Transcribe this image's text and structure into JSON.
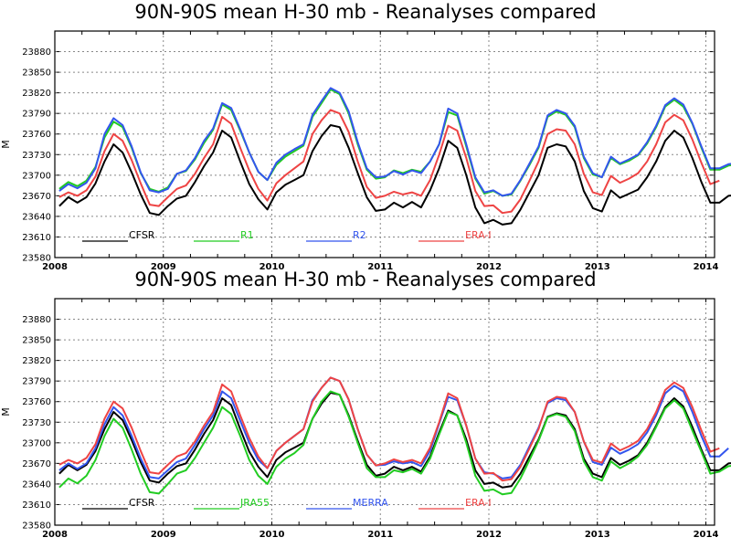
{
  "chart_data": [
    {
      "type": "line",
      "title": "90N-90S mean H-30 mb - Reanalyses compared",
      "ylabel": "M",
      "ylim": [
        23580,
        23910
      ],
      "yticks": [
        23580,
        23610,
        23640,
        23670,
        23700,
        23730,
        23760,
        23790,
        23820,
        23850,
        23880
      ],
      "xlim": [
        2008,
        2014.08
      ],
      "xticks": [
        "2008",
        "2009",
        "2010",
        "2011",
        "2012",
        "2013",
        "2014"
      ],
      "grid": true,
      "legend_position": "bottom",
      "series": [
        {
          "name": "CFSR",
          "color": "#000000",
          "start": 2008.0,
          "values": [
            23655,
            23668,
            23660,
            23668,
            23688,
            23720,
            23745,
            23733,
            23704,
            23672,
            23645,
            23642,
            23655,
            23666,
            23670,
            23690,
            23713,
            23733,
            23765,
            23755,
            23720,
            23687,
            23665,
            23650,
            23675,
            23686,
            23693,
            23700,
            23735,
            23757,
            23773,
            23770,
            23740,
            23703,
            23668,
            23648,
            23650,
            23660,
            23653,
            23661,
            23653,
            23678,
            23710,
            23750,
            23740,
            23700,
            23653,
            23630,
            23635,
            23628,
            23630,
            23650,
            23675,
            23700,
            23740,
            23745,
            23742,
            23720,
            23677,
            23652,
            23647,
            23678,
            23667,
            23673,
            23679,
            23697,
            23720,
            23750,
            23765,
            23755,
            23725,
            23690,
            23660,
            23660,
            23670,
            23671
          ]
        },
        {
          "name": "R1",
          "color": "#22cc22",
          "start": 2008.0,
          "values": [
            23680,
            23690,
            23684,
            23692,
            23712,
            23755,
            23778,
            23770,
            23740,
            23703,
            23680,
            23676,
            23682,
            23702,
            23706,
            23723,
            23747,
            23766,
            23803,
            23795,
            23765,
            23733,
            23705,
            23693,
            23715,
            23727,
            23735,
            23743,
            23785,
            23805,
            23825,
            23818,
            23790,
            23745,
            23708,
            23695,
            23697,
            23707,
            23703,
            23708,
            23705,
            23720,
            23745,
            23792,
            23787,
            23742,
            23695,
            23673,
            23677,
            23670,
            23672,
            23692,
            23715,
            23740,
            23785,
            23793,
            23788,
            23770,
            23725,
            23701,
            23697,
            23725,
            23716,
            23721,
            23729,
            23746,
            23770,
            23800,
            23810,
            23800,
            23775,
            23740,
            23708,
            23708,
            23714,
            23716
          ]
        },
        {
          "name": "R2",
          "color": "#3355ee",
          "start": 2008.0,
          "values": [
            23677,
            23687,
            23681,
            23689,
            23710,
            23760,
            23783,
            23773,
            23742,
            23704,
            23678,
            23675,
            23680,
            23702,
            23707,
            23725,
            23750,
            23768,
            23805,
            23798,
            23767,
            23733,
            23705,
            23693,
            23718,
            23730,
            23738,
            23745,
            23788,
            23808,
            23827,
            23820,
            23793,
            23748,
            23710,
            23697,
            23698,
            23706,
            23701,
            23707,
            23703,
            23720,
            23745,
            23797,
            23790,
            23745,
            23697,
            23675,
            23678,
            23670,
            23673,
            23693,
            23717,
            23742,
            23787,
            23795,
            23790,
            23772,
            23727,
            23703,
            23697,
            23727,
            23717,
            23723,
            23730,
            23748,
            23772,
            23802,
            23812,
            23803,
            23776,
            23742,
            23710,
            23710,
            23716,
            23718
          ]
        },
        {
          "name": "ERA-I",
          "color": "#ee4444",
          "start": 2008.0,
          "values": [
            23668,
            23675,
            23670,
            23678,
            23698,
            23735,
            23760,
            23750,
            23722,
            23688,
            23657,
            23655,
            23668,
            23680,
            23685,
            23702,
            23725,
            23745,
            23785,
            23775,
            23740,
            23707,
            23680,
            23663,
            23688,
            23700,
            23710,
            23720,
            23760,
            23780,
            23795,
            23790,
            23763,
            23720,
            23683,
            23667,
            23670,
            23676,
            23672,
            23675,
            23670,
            23693,
            23730,
            23772,
            23765,
            23725,
            23677,
            23655,
            23656,
            23645,
            23647,
            23665,
            23692,
            23720,
            23760,
            23767,
            23765,
            23745,
            23702,
            23675,
            23671,
            23699,
            23689,
            23695,
            23703,
            23720,
            23745,
            23777,
            23788,
            23780,
            23752,
            23718,
            23687,
            23692
          ]
        }
      ]
    },
    {
      "type": "line",
      "title": "90N-90S mean H-30 mb - Reanalyses compared",
      "ylabel": "M",
      "ylim": [
        23580,
        23910
      ],
      "yticks": [
        23580,
        23610,
        23640,
        23670,
        23700,
        23730,
        23760,
        23790,
        23820,
        23850,
        23880
      ],
      "xlim": [
        2008,
        2014.08
      ],
      "xticks": [
        "2008",
        "2009",
        "2010",
        "2011",
        "2012",
        "2013",
        "2014"
      ],
      "grid": true,
      "legend_position": "bottom",
      "series": [
        {
          "name": "CFSR",
          "color": "#000000",
          "start": 2008.0,
          "values": [
            23655,
            23668,
            23660,
            23668,
            23688,
            23720,
            23745,
            23733,
            23704,
            23672,
            23645,
            23642,
            23655,
            23666,
            23670,
            23690,
            23713,
            23733,
            23765,
            23755,
            23720,
            23687,
            23665,
            23650,
            23675,
            23686,
            23693,
            23700,
            23735,
            23757,
            23773,
            23770,
            23740,
            23703,
            23668,
            23652,
            23655,
            23665,
            23660,
            23665,
            23658,
            23680,
            23715,
            23747,
            23740,
            23705,
            23660,
            23640,
            23642,
            23635,
            23637,
            23655,
            23680,
            23705,
            23738,
            23743,
            23740,
            23720,
            23677,
            23655,
            23650,
            23678,
            23668,
            23674,
            23682,
            23700,
            23725,
            23752,
            23765,
            23753,
            23723,
            23690,
            23660,
            23660,
            23670,
            23671
          ]
        },
        {
          "name": "JRA55",
          "color": "#22cc22",
          "start": 2008.0,
          "values": [
            23635,
            23648,
            23641,
            23652,
            23675,
            23710,
            23735,
            23722,
            23690,
            23655,
            23628,
            23626,
            23640,
            23655,
            23660,
            23678,
            23700,
            23722,
            23752,
            23742,
            23710,
            23675,
            23652,
            23640,
            23665,
            23677,
            23685,
            23697,
            23735,
            23760,
            23775,
            23770,
            23738,
            23700,
            23663,
            23650,
            23650,
            23660,
            23657,
            23662,
            23655,
            23677,
            23712,
            23745,
            23740,
            23700,
            23652,
            23630,
            23632,
            23625,
            23627,
            23648,
            23675,
            23703,
            23737,
            23742,
            23738,
            23717,
            23673,
            23650,
            23645,
            23673,
            23663,
            23670,
            23680,
            23697,
            23723,
            23750,
            23762,
            23750,
            23718,
            23687,
            23655,
            23658,
            23666,
            23667
          ]
        },
        {
          "name": "MERRA",
          "color": "#3355ee",
          "start": 2008.0,
          "values": [
            23660,
            23670,
            23662,
            23670,
            23692,
            23727,
            23752,
            23740,
            23710,
            23677,
            23650,
            23648,
            23660,
            23672,
            23677,
            23697,
            23720,
            23740,
            23775,
            23765,
            23732,
            23700,
            23675,
            23663,
            23688,
            23700,
            23710,
            23720,
            23762,
            23780,
            23795,
            23790,
            23763,
            23720,
            23683,
            23667,
            23668,
            23673,
            23670,
            23672,
            23666,
            23688,
            23728,
            23767,
            23762,
            23725,
            23677,
            23657,
            23655,
            23648,
            23650,
            23668,
            23695,
            23722,
            23758,
            23765,
            23762,
            23745,
            23702,
            23672,
            23668,
            23693,
            23684,
            23690,
            23698,
            23715,
            23740,
            23772,
            23783,
            23775,
            23745,
            23710,
            23680,
            23680,
            23692
          ]
        },
        {
          "name": "ERA-I",
          "color": "#ee4444",
          "start": 2008.0,
          "values": [
            23668,
            23675,
            23670,
            23678,
            23698,
            23735,
            23760,
            23750,
            23722,
            23688,
            23657,
            23655,
            23668,
            23680,
            23685,
            23702,
            23725,
            23745,
            23785,
            23775,
            23740,
            23707,
            23680,
            23663,
            23688,
            23700,
            23710,
            23720,
            23760,
            23780,
            23795,
            23790,
            23763,
            23720,
            23683,
            23667,
            23670,
            23676,
            23672,
            23675,
            23670,
            23693,
            23730,
            23772,
            23765,
            23725,
            23677,
            23655,
            23656,
            23645,
            23647,
            23665,
            23692,
            23720,
            23760,
            23767,
            23765,
            23745,
            23702,
            23675,
            23671,
            23699,
            23689,
            23695,
            23703,
            23720,
            23745,
            23777,
            23788,
            23780,
            23752,
            23718,
            23687,
            23692
          ]
        }
      ]
    }
  ]
}
